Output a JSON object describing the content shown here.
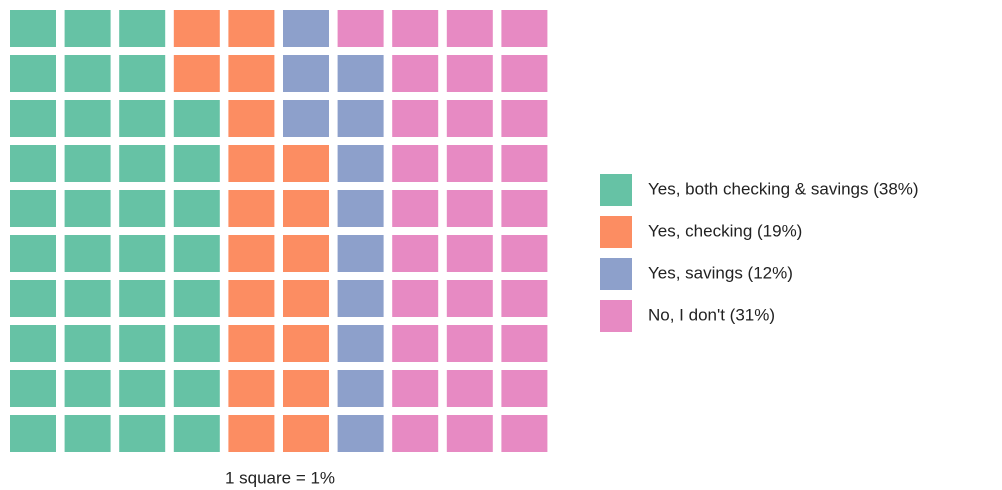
{
  "chart_data": {
    "type": "waffle",
    "categories": [
      "Yes, both checking & savings (38%)",
      "Yes, checking (19%)",
      "Yes, savings (12%)",
      "No, I don't (31%)"
    ],
    "values": [
      38,
      19,
      12,
      31
    ],
    "colors": [
      "#66c2a5",
      "#fc8d62",
      "#8da0cb",
      "#e78ac3"
    ],
    "caption": "1 square = 1%",
    "legend": "right"
  }
}
